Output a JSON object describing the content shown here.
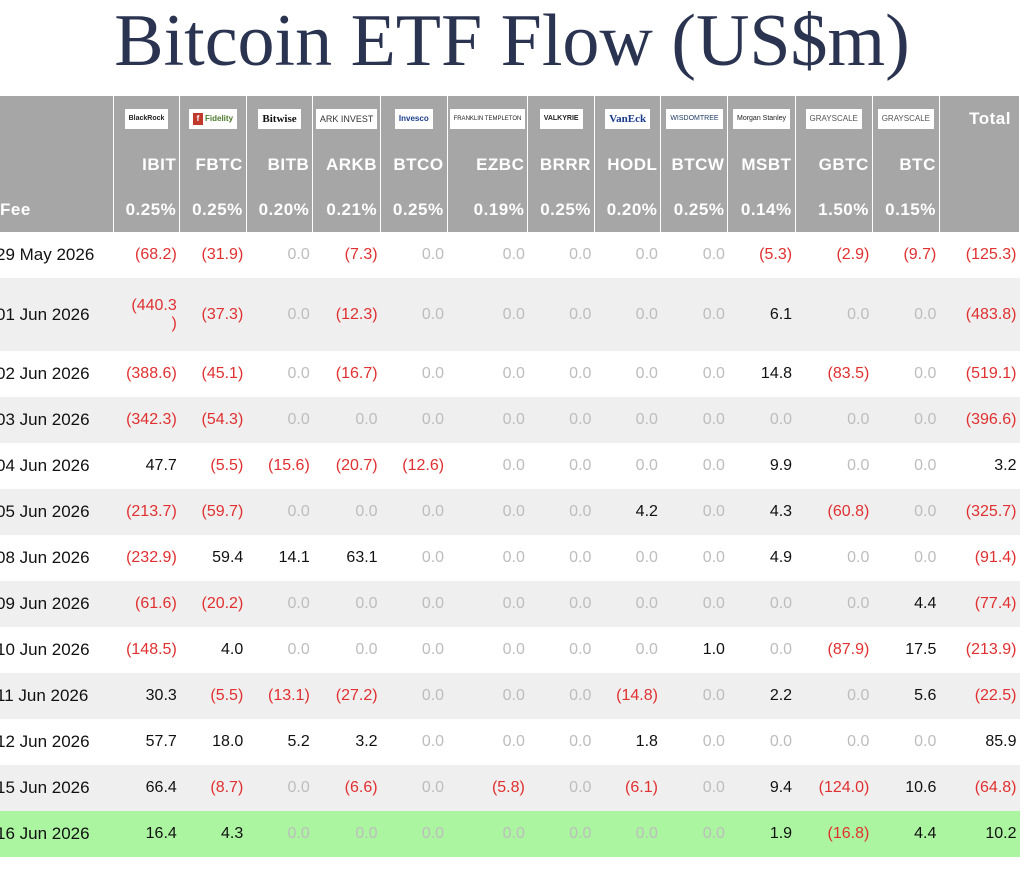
{
  "title": "Bitcoin ETF Flow (US$m)",
  "issuers": [
    {
      "logo": "BlackRock",
      "icon": "blackrock-logo"
    },
    {
      "logo": "Fidelity",
      "icon": "fidelity-logo"
    },
    {
      "logo": "Bitwise",
      "icon": "bitwise-logo"
    },
    {
      "logo": "ARK INVEST",
      "icon": "ark-logo"
    },
    {
      "logo": "Invesco",
      "icon": "invesco-logo"
    },
    {
      "logo": "FRANKLIN TEMPLETON",
      "icon": "franklin-templeton-logo"
    },
    {
      "logo": "VALKYRIE",
      "icon": "valkyrie-logo"
    },
    {
      "logo": "VanEck",
      "icon": "vaneck-logo"
    },
    {
      "logo": "WISDOMTREE",
      "icon": "wisdomtree-logo"
    },
    {
      "logo": "Morgan Stanley",
      "icon": "morgan-stanley-logo"
    },
    {
      "logo": "GRAYSCALE",
      "icon": "grayscale-logo"
    },
    {
      "logo": "GRAYSCALE",
      "icon": "grayscale-logo"
    }
  ],
  "total_label": "Total",
  "tickers": [
    "IBIT",
    "FBTC",
    "BITB",
    "ARKB",
    "BTCO",
    "EZBC",
    "BRRR",
    "HODL",
    "BTCW",
    "MSBT",
    "GBTC",
    "BTC"
  ],
  "fee_label": "Fee",
  "fees": [
    "0.25%",
    "0.25%",
    "0.20%",
    "0.21%",
    "0.25%",
    "0.19%",
    "0.25%",
    "0.20%",
    "0.25%",
    "0.14%",
    "1.50%",
    "0.15%"
  ],
  "rows": [
    {
      "date": "29 May 2026",
      "values": [
        "(68.2)",
        "(31.9)",
        "0.0",
        "(7.3)",
        "0.0",
        "0.0",
        "0.0",
        "0.0",
        "0.0",
        "(5.3)",
        "(2.9)",
        "(9.7)"
      ],
      "total": "(125.3)"
    },
    {
      "date": "01 Jun 2026",
      "values": [
        "(440.3)",
        "(37.3)",
        "0.0",
        "(12.3)",
        "0.0",
        "0.0",
        "0.0",
        "0.0",
        "0.0",
        "6.1",
        "0.0",
        "0.0"
      ],
      "total": "(483.8)"
    },
    {
      "date": "02 Jun 2026",
      "values": [
        "(388.6)",
        "(45.1)",
        "0.0",
        "(16.7)",
        "0.0",
        "0.0",
        "0.0",
        "0.0",
        "0.0",
        "14.8",
        "(83.5)",
        "0.0"
      ],
      "total": "(519.1)"
    },
    {
      "date": "03 Jun 2026",
      "values": [
        "(342.3)",
        "(54.3)",
        "0.0",
        "0.0",
        "0.0",
        "0.0",
        "0.0",
        "0.0",
        "0.0",
        "0.0",
        "0.0",
        "0.0"
      ],
      "total": "(396.6)"
    },
    {
      "date": "04 Jun 2026",
      "values": [
        "47.7",
        "(5.5)",
        "(15.6)",
        "(20.7)",
        "(12.6)",
        "0.0",
        "0.0",
        "0.0",
        "0.0",
        "9.9",
        "0.0",
        "0.0"
      ],
      "total": "3.2"
    },
    {
      "date": "05 Jun 2026",
      "values": [
        "(213.7)",
        "(59.7)",
        "0.0",
        "0.0",
        "0.0",
        "0.0",
        "0.0",
        "4.2",
        "0.0",
        "4.3",
        "(60.8)",
        "0.0"
      ],
      "total": "(325.7)"
    },
    {
      "date": "08 Jun 2026",
      "values": [
        "(232.9)",
        "59.4",
        "14.1",
        "63.1",
        "0.0",
        "0.0",
        "0.0",
        "0.0",
        "0.0",
        "4.9",
        "0.0",
        "0.0"
      ],
      "total": "(91.4)"
    },
    {
      "date": "09 Jun 2026",
      "values": [
        "(61.6)",
        "(20.2)",
        "0.0",
        "0.0",
        "0.0",
        "0.0",
        "0.0",
        "0.0",
        "0.0",
        "0.0",
        "0.0",
        "4.4"
      ],
      "total": "(77.4)"
    },
    {
      "date": "10 Jun 2026",
      "values": [
        "(148.5)",
        "4.0",
        "0.0",
        "0.0",
        "0.0",
        "0.0",
        "0.0",
        "0.0",
        "1.0",
        "0.0",
        "(87.9)",
        "17.5"
      ],
      "total": "(213.9)"
    },
    {
      "date": "11 Jun 2026",
      "values": [
        "30.3",
        "(5.5)",
        "(13.1)",
        "(27.2)",
        "0.0",
        "0.0",
        "0.0",
        "(14.8)",
        "0.0",
        "2.2",
        "0.0",
        "5.6"
      ],
      "total": "(22.5)"
    },
    {
      "date": "12 Jun 2026",
      "values": [
        "57.7",
        "18.0",
        "5.2",
        "3.2",
        "0.0",
        "0.0",
        "0.0",
        "1.8",
        "0.0",
        "0.0",
        "0.0",
        "0.0"
      ],
      "total": "85.9"
    },
    {
      "date": "15 Jun 2026",
      "values": [
        "66.4",
        "(8.7)",
        "0.0",
        "(6.6)",
        "0.0",
        "(5.8)",
        "0.0",
        "(6.1)",
        "0.0",
        "9.4",
        "(124.0)",
        "10.6"
      ],
      "total": "(64.8)"
    },
    {
      "date": "16 Jun 2026",
      "values": [
        "16.4",
        "4.3",
        "0.0",
        "0.0",
        "0.0",
        "0.0",
        "0.0",
        "0.0",
        "0.0",
        "1.9",
        "(16.8)",
        "4.4"
      ],
      "total": "10.2"
    }
  ],
  "colors": {
    "header_bg": "#a6a6a6",
    "negative": "#e03030",
    "zero": "#bdbdbd",
    "highlight_row": "#abf5a0",
    "stripe": "#efefef",
    "title": "#2a3350"
  }
}
